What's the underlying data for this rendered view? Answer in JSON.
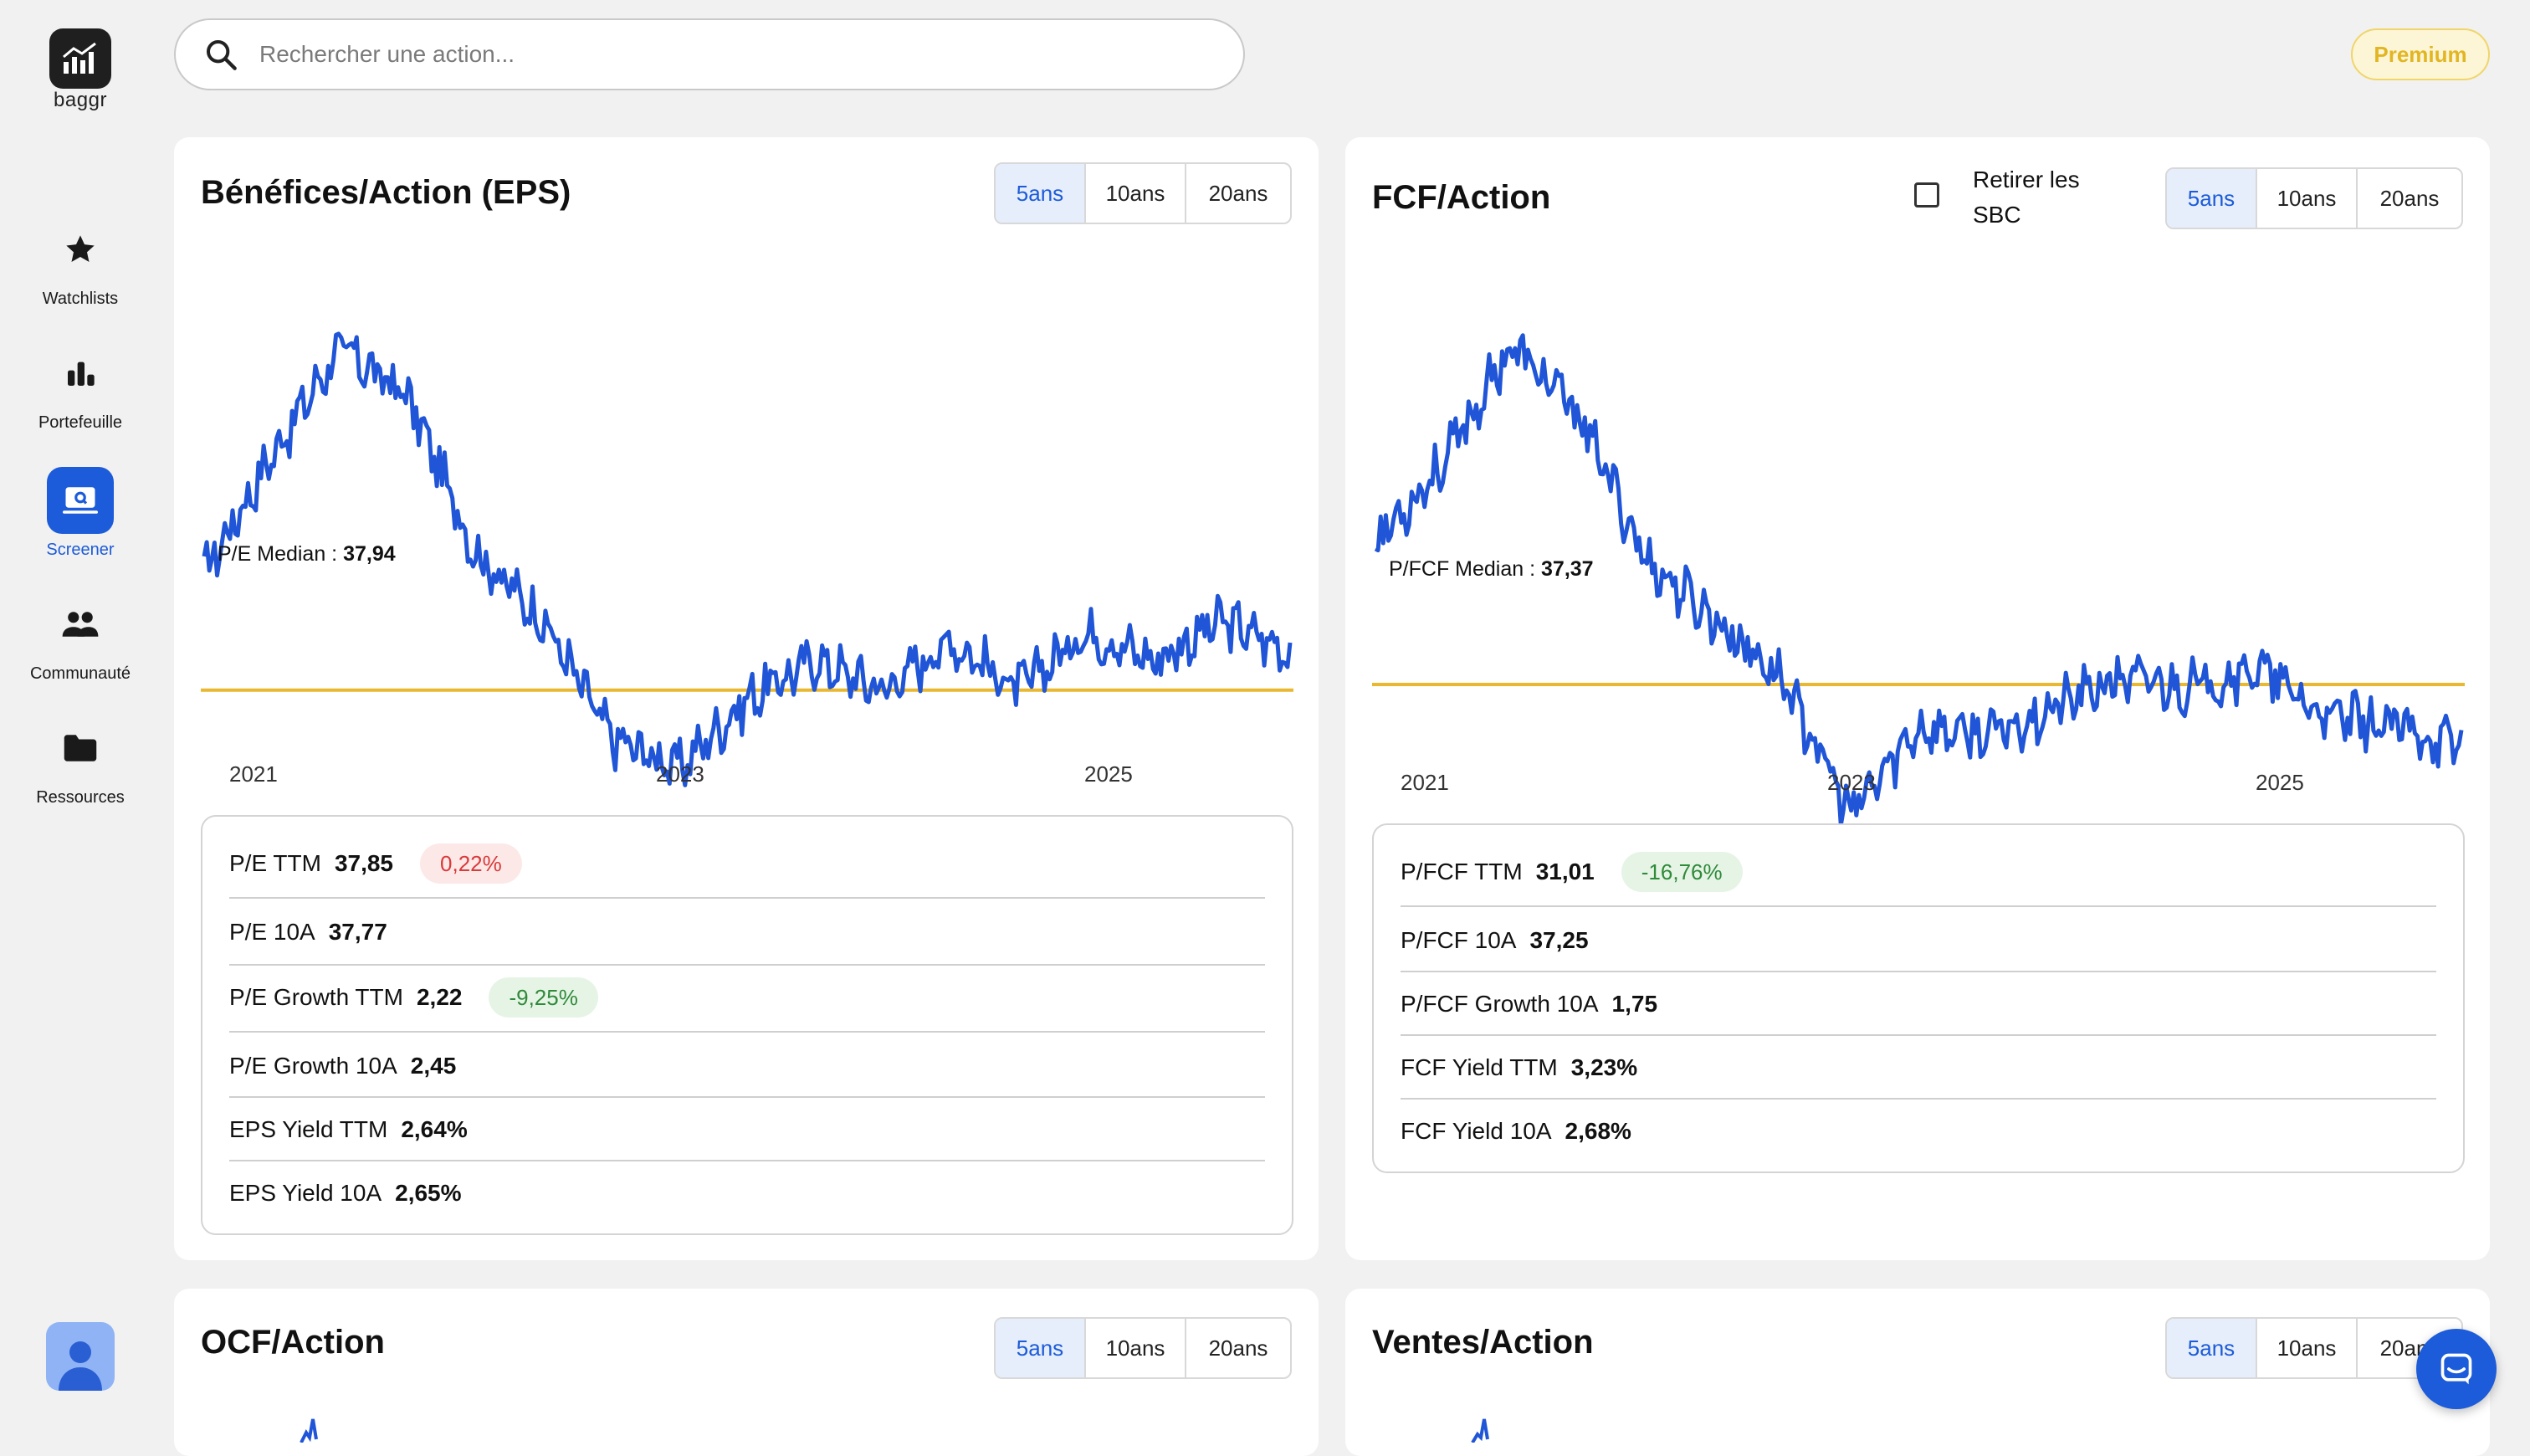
{
  "app": {
    "name": "baggr"
  },
  "nav": [
    {
      "label": "Watchlists",
      "icon": "star-icon"
    },
    {
      "label": "Portefeuille",
      "icon": "bar-chart-icon"
    },
    {
      "label": "Screener",
      "icon": "screener-icon",
      "active": true
    },
    {
      "label": "Communauté",
      "icon": "people-icon"
    },
    {
      "label": "Ressources",
      "icon": "folder-icon"
    }
  ],
  "search": {
    "placeholder": "Rechercher une action..."
  },
  "premium_label": "Premium",
  "periods": [
    "5ans",
    "10ans",
    "20ans"
  ],
  "colors": {
    "accent": "#1c5bd9",
    "series": "#1f55d6",
    "median": "#e9b830",
    "premium": "#e2b523"
  },
  "eps_card": {
    "title": "Bénéfices/Action (EPS)",
    "median_label": "P/E Median :",
    "median_value": "37,94",
    "x_labels": [
      "2021",
      "2023",
      "2025"
    ],
    "metrics": [
      {
        "label": "P/E TTM",
        "value": "37,85",
        "badge": "0,22%",
        "badge_type": "neg"
      },
      {
        "label": "P/E 10A",
        "value": "37,77"
      },
      {
        "label": "P/E Growth TTM",
        "value": "2,22",
        "badge": "-9,25%",
        "badge_type": "pos"
      },
      {
        "label": "P/E Growth 10A",
        "value": "2,45"
      },
      {
        "label": "EPS Yield TTM",
        "value": "2,64%"
      },
      {
        "label": "EPS Yield 10A",
        "value": "2,65%"
      }
    ]
  },
  "fcf_card": {
    "title": "FCF/Action",
    "sbc_label_1": "Retirer les",
    "sbc_label_2": "SBC",
    "median_label": "P/FCF Median :",
    "median_value": "37,37",
    "x_labels": [
      "2021",
      "2023",
      "2025"
    ],
    "metrics": [
      {
        "label": "P/FCF TTM",
        "value": "31,01",
        "badge": "-16,76%",
        "badge_type": "pos"
      },
      {
        "label": "P/FCF 10A",
        "value": "37,25"
      },
      {
        "label": "P/FCF Growth 10A",
        "value": "1,75"
      },
      {
        "label": "FCF Yield TTM",
        "value": "3,23%"
      },
      {
        "label": "FCF Yield 10A",
        "value": "2,68%"
      }
    ]
  },
  "ocf_card": {
    "title": "OCF/Action"
  },
  "sales_card": {
    "title": "Ventes/Action"
  },
  "chart_data": [
    {
      "type": "line",
      "title": "Bénéfices/Action (EPS)",
      "x": [
        "2020-09",
        "2021-01",
        "2021-06",
        "2021-09",
        "2021-12",
        "2022-03",
        "2022-06",
        "2022-10",
        "2023-01",
        "2023-06",
        "2023-10",
        "2024-02",
        "2024-06",
        "2024-10",
        "2025-02",
        "2025-06",
        "2025-09"
      ],
      "series": [
        {
          "values": [
            50,
            62,
            73,
            68,
            52,
            45,
            33,
            30,
            37,
            41,
            38,
            43,
            38,
            44,
            41,
            45,
            42
          ]
        }
      ],
      "median": 37.94,
      "x_tick_labels": [
        "2021",
        "2023",
        "2025"
      ]
    },
    {
      "type": "line",
      "title": "FCF/Action",
      "x": [
        "2020-09",
        "2021-01",
        "2021-06",
        "2021-09",
        "2021-12",
        "2022-03",
        "2022-06",
        "2022-10",
        "2023-01",
        "2023-06",
        "2023-10",
        "2024-02",
        "2024-06",
        "2024-10",
        "2025-02",
        "2025-06",
        "2025-09"
      ],
      "series": [
        {
          "values": [
            52,
            60,
            72,
            65,
            50,
            44,
            38,
            24,
            33,
            32,
            35,
            38,
            37,
            39,
            34,
            33,
            31
          ]
        }
      ],
      "median": 37.37,
      "x_tick_labels": [
        "2021",
        "2023",
        "2025"
      ]
    }
  ]
}
